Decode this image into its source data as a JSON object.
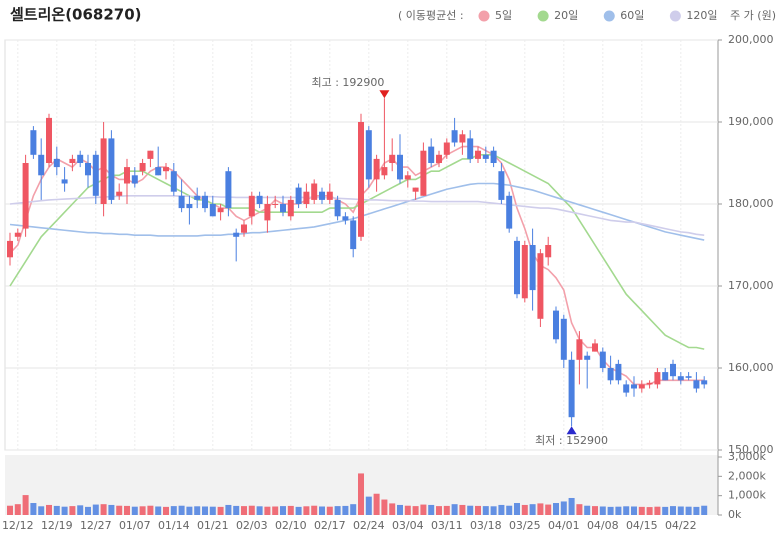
{
  "chart_data": {
    "type": "candlestick",
    "title": "셀트리온(068270)",
    "legend_title": "( 이동평균선 :",
    "axis_unit": "주 가 (원)",
    "categories": [
      null,
      "12/12",
      null,
      null,
      null,
      null,
      "12/19",
      null,
      null,
      null,
      null,
      "12/27",
      null,
      null,
      null,
      null,
      "01/07",
      null,
      null,
      null,
      null,
      "01/14",
      null,
      null,
      null,
      null,
      "01/21",
      null,
      null,
      null,
      null,
      "02/03",
      null,
      null,
      null,
      null,
      "02/10",
      null,
      null,
      null,
      null,
      "02/17",
      null,
      null,
      null,
      null,
      "02/24",
      null,
      null,
      null,
      null,
      "03/04",
      null,
      null,
      null,
      null,
      "03/11",
      null,
      null,
      null,
      null,
      "03/18",
      null,
      null,
      null,
      null,
      "03/25",
      null,
      null,
      null,
      null,
      "04/01",
      null,
      null,
      null,
      null,
      "04/08",
      null,
      null,
      null,
      null,
      "04/15",
      null,
      null,
      null,
      null,
      "04/22",
      null,
      null,
      null
    ],
    "open": [
      173500,
      176000,
      177000,
      189000,
      186000,
      185000,
      185500,
      183000,
      185000,
      186000,
      185000,
      186000,
      180000,
      188000,
      181000,
      182500,
      183500,
      184000,
      185500,
      184500,
      184000,
      184000,
      181000,
      180000,
      181000,
      181000,
      180000,
      179000,
      184000,
      176500,
      176500,
      178500,
      181000,
      178000,
      180000,
      180000,
      178500,
      182000,
      180000,
      180500,
      181500,
      180500,
      180500,
      178500,
      178000,
      176000,
      189000,
      183000,
      183500,
      185000,
      186000,
      183000,
      181500,
      181000,
      187000,
      185000,
      186000,
      189000,
      187500,
      188000,
      185500,
      186000,
      186500,
      184000,
      181000,
      175500,
      168500,
      175000,
      166000,
      173500,
      167000,
      166000,
      161000,
      161000,
      161500,
      162000,
      162000,
      160000,
      160500,
      158000,
      158000,
      157500,
      158000,
      158000,
      159500,
      160500,
      159000,
      159000,
      158500,
      158500
    ],
    "high": [
      176500,
      177000,
      186000,
      189500,
      188000,
      191000,
      187000,
      184500,
      186000,
      186500,
      186000,
      186500,
      190000,
      189000,
      182500,
      185500,
      184500,
      185500,
      186500,
      187000,
      185000,
      185000,
      183000,
      181000,
      182000,
      181500,
      181000,
      180000,
      184500,
      177000,
      178000,
      181500,
      181500,
      181000,
      181000,
      181000,
      181000,
      182500,
      182500,
      183000,
      182000,
      182500,
      181000,
      179000,
      178500,
      191000,
      189500,
      186000,
      192900,
      188000,
      188500,
      184000,
      182000,
      187500,
      188000,
      186500,
      188000,
      190500,
      189000,
      189000,
      187000,
      187000,
      187000,
      185000,
      181500,
      176000,
      175500,
      177000,
      174500,
      176000,
      167500,
      166500,
      162000,
      164500,
      162000,
      163500,
      162500,
      161500,
      161000,
      158500,
      159000,
      158500,
      158500,
      160000,
      160000,
      161000,
      159500,
      159500,
      159500,
      159000
    ],
    "low": [
      172500,
      175500,
      176000,
      185500,
      180500,
      184500,
      183500,
      181500,
      184000,
      184500,
      182000,
      180000,
      178500,
      180000,
      180500,
      180000,
      182000,
      183500,
      184500,
      183500,
      183000,
      181000,
      179000,
      177500,
      179500,
      179000,
      178500,
      178000,
      178500,
      173000,
      176000,
      177500,
      179500,
      176500,
      179500,
      178500,
      178000,
      179500,
      179500,
      180000,
      180000,
      180000,
      178000,
      177500,
      173500,
      175500,
      182000,
      181500,
      183000,
      184000,
      182500,
      182000,
      180500,
      181000,
      184500,
      184500,
      185500,
      187000,
      186000,
      185000,
      185000,
      185000,
      184500,
      180000,
      176500,
      168500,
      168000,
      167000,
      165000,
      172500,
      163000,
      160000,
      152900,
      158000,
      157500,
      162000,
      159500,
      158000,
      158000,
      156500,
      156500,
      157000,
      157500,
      157500,
      158500,
      158500,
      158000,
      158500,
      157000,
      157500
    ],
    "close": [
      175500,
      176500,
      185000,
      186000,
      183500,
      190500,
      184500,
      182500,
      185500,
      185000,
      183500,
      181000,
      188000,
      180500,
      181500,
      184500,
      182500,
      185000,
      186500,
      183500,
      184500,
      181500,
      179500,
      179500,
      180500,
      179500,
      178500,
      179500,
      179500,
      176000,
      177500,
      181000,
      180000,
      180000,
      180000,
      179000,
      180500,
      180000,
      181500,
      182500,
      180500,
      181500,
      178500,
      178000,
      174500,
      190000,
      183000,
      185500,
      184500,
      186000,
      183000,
      183500,
      182000,
      186500,
      185000,
      186000,
      187500,
      187500,
      188500,
      185500,
      186500,
      185500,
      185000,
      180500,
      177000,
      169000,
      175000,
      169500,
      174000,
      175000,
      163500,
      161000,
      154000,
      163500,
      161000,
      163000,
      160000,
      158500,
      158500,
      157000,
      157500,
      158000,
      158200,
      159500,
      158500,
      159000,
      158500,
      158800,
      157500,
      158000
    ],
    "volume": [
      480,
      560,
      1030,
      620,
      450,
      520,
      470,
      430,
      460,
      500,
      420,
      540,
      560,
      520,
      480,
      470,
      430,
      450,
      480,
      440,
      420,
      460,
      480,
      430,
      450,
      440,
      430,
      420,
      520,
      470,
      460,
      480,
      450,
      430,
      440,
      460,
      470,
      420,
      450,
      480,
      440,
      430,
      460,
      470,
      560,
      2150,
      950,
      1100,
      800,
      600,
      520,
      480,
      460,
      540,
      520,
      460,
      470,
      560,
      520,
      480,
      470,
      460,
      450,
      520,
      480,
      620,
      520,
      560,
      600,
      540,
      620,
      700,
      880,
      560,
      480,
      460,
      440,
      420,
      430,
      450,
      440,
      420,
      410,
      430,
      420,
      460,
      440,
      430,
      420,
      480
    ],
    "volume_ylim": [
      0,
      3000
    ],
    "volume_yticks": [
      {
        "value": 0,
        "label": "0k"
      },
      {
        "value": 1000,
        "label": "1,000k"
      },
      {
        "value": 2000,
        "label": "2,000k"
      },
      {
        "value": 3000,
        "label": "3,000k"
      }
    ],
    "up_color": "#ef5662",
    "down_color": "#4a7fe0",
    "ylim": [
      150000,
      200000
    ],
    "yticks": [
      {
        "value": 150000,
        "label": "150,000"
      },
      {
        "value": 160000,
        "label": "160,000"
      },
      {
        "value": 170000,
        "label": "170,000"
      },
      {
        "value": 180000,
        "label": "180,000"
      },
      {
        "value": 190000,
        "label": "190,000"
      },
      {
        "value": 200000,
        "label": "200,000"
      }
    ],
    "high_annotation": {
      "value": 192900,
      "label": "최고 : 192900",
      "color": "#e02020"
    },
    "low_annotation": {
      "value": 152900,
      "label": "최저 : 152900",
      "color": "#2a2acc"
    },
    "moving_averages": [
      {
        "name": "5일",
        "color": "#f3a0aa",
        "values": [
          174000,
          175000,
          178000,
          181000,
          183000,
          184500,
          185500,
          185000,
          184500,
          185500,
          185000,
          184000,
          184500,
          183500,
          183000,
          183000,
          182500,
          183000,
          184000,
          184500,
          184500,
          184000,
          183000,
          182000,
          181000,
          180500,
          180000,
          179500,
          179500,
          178500,
          178000,
          178500,
          179000,
          179500,
          180500,
          180000,
          180000,
          180000,
          180500,
          181000,
          181000,
          181000,
          180500,
          180000,
          179000,
          181000,
          182000,
          183500,
          185000,
          185500,
          184500,
          184500,
          183500,
          184000,
          184500,
          185000,
          186000,
          186500,
          187000,
          187000,
          187000,
          186500,
          186000,
          185000,
          183000,
          179500,
          177000,
          174000,
          172500,
          172000,
          171000,
          169500,
          165500,
          163500,
          162500,
          162500,
          161000,
          160000,
          159500,
          159000,
          158000,
          158000,
          158000,
          158500,
          158500,
          158500,
          158500,
          158500,
          158500,
          158500
        ]
      },
      {
        "name": "20일",
        "color": "#a3d98f",
        "values": [
          170000,
          171500,
          173000,
          174500,
          176000,
          177000,
          178000,
          179000,
          180000,
          181000,
          182000,
          182500,
          183000,
          183500,
          183500,
          184000,
          184000,
          184000,
          183500,
          183000,
          182500,
          182000,
          181500,
          181000,
          180500,
          180500,
          180000,
          180000,
          179500,
          179500,
          179500,
          179500,
          179000,
          179000,
          179000,
          179000,
          179000,
          179000,
          179000,
          179000,
          179000,
          179500,
          179500,
          179500,
          179500,
          180000,
          180500,
          181000,
          181500,
          182000,
          182500,
          183000,
          183000,
          183500,
          184000,
          184000,
          184500,
          185000,
          185500,
          185500,
          186000,
          186000,
          186000,
          185500,
          185000,
          184500,
          184000,
          183500,
          183000,
          182500,
          181500,
          180500,
          179500,
          178000,
          176500,
          175000,
          173500,
          172000,
          170500,
          169000,
          168000,
          167000,
          166000,
          165000,
          164000,
          163500,
          163000,
          162500,
          162500,
          162300
        ]
      },
      {
        "name": "60일",
        "color": "#a0bfea",
        "values": [
          177500,
          177400,
          177300,
          177200,
          177100,
          177000,
          176900,
          176800,
          176700,
          176600,
          176500,
          176500,
          176400,
          176400,
          176300,
          176300,
          176200,
          176200,
          176200,
          176100,
          176100,
          176100,
          176100,
          176100,
          176100,
          176200,
          176200,
          176200,
          176300,
          176300,
          176400,
          176500,
          176500,
          176600,
          176700,
          176800,
          176900,
          177000,
          177100,
          177200,
          177400,
          177600,
          177800,
          178000,
          178200,
          178500,
          178800,
          179100,
          179400,
          179700,
          180000,
          180300,
          180600,
          180900,
          181200,
          181500,
          181800,
          182000,
          182200,
          182400,
          182500,
          182500,
          182500,
          182400,
          182300,
          182100,
          181900,
          181700,
          181400,
          181100,
          180800,
          180500,
          180200,
          179900,
          179600,
          179300,
          179000,
          178700,
          178400,
          178100,
          177800,
          177500,
          177200,
          176900,
          176600,
          176400,
          176200,
          176000,
          175800,
          175600
        ]
      },
      {
        "name": "120일",
        "color": "#cfcdeb",
        "values": [
          180000,
          180100,
          180200,
          180300,
          180400,
          180500,
          180550,
          180600,
          180650,
          180700,
          180750,
          180800,
          180850,
          180900,
          180950,
          181000,
          181000,
          181000,
          181000,
          181000,
          181000,
          181000,
          180950,
          180950,
          180900,
          180900,
          180900,
          180850,
          180850,
          180800,
          180800,
          180800,
          180800,
          180800,
          180800,
          180800,
          180800,
          180800,
          180800,
          180800,
          180800,
          180750,
          180700,
          180650,
          180600,
          180550,
          180500,
          180500,
          180450,
          180400,
          180400,
          180400,
          180350,
          180350,
          180300,
          180300,
          180300,
          180300,
          180300,
          180300,
          180300,
          180200,
          180100,
          180000,
          179900,
          179800,
          179700,
          179600,
          179500,
          179500,
          179400,
          179200,
          179000,
          178800,
          178600,
          178400,
          178200,
          178000,
          177900,
          177800,
          177800,
          177600,
          177400,
          177200,
          177000,
          176800,
          176600,
          176500,
          176300,
          176200
        ]
      }
    ]
  }
}
